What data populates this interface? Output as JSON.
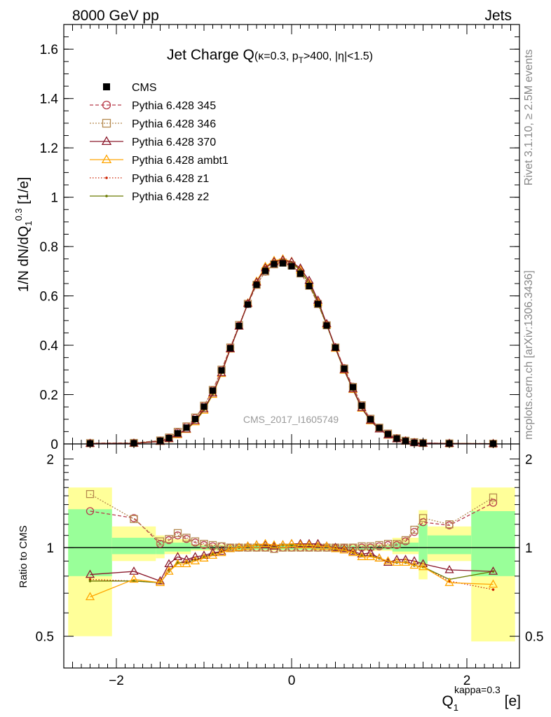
{
  "header": {
    "left": "8000 GeV pp",
    "right": "Jets"
  },
  "side_text": {
    "rivet": "Rivet 3.1.10, ≥ 2.5M events",
    "mcplots": "mcplots.cern.ch [arXiv:1306.3436]"
  },
  "chart_data": [
    {
      "type": "line",
      "title_main": "Jet Charge Q",
      "title_cond_a": "(κ=0.3, p",
      "title_cond_sub": "T",
      "title_cond_b": ">400, |η|<1.5)",
      "watermark": "CMS_2017_I1605749",
      "ylabel_main": "1/N dN/dQ",
      "ylabel_sub": "1",
      "ylabel_sup": "0.3",
      "ylabel_unit": " [1/e]",
      "xlim": [
        -2.6,
        2.6
      ],
      "ylim": [
        0,
        1.7
      ],
      "yticks": [
        "0",
        "0.2",
        "0.4",
        "0.6",
        "0.8",
        "1",
        "1.2",
        "1.4",
        "1.6"
      ],
      "legend_position": "top-left",
      "x": [
        -2.3,
        -1.8,
        -1.5,
        -1.4,
        -1.3,
        -1.2,
        -1.1,
        -1.0,
        -0.9,
        -0.8,
        -0.7,
        -0.6,
        -0.5,
        -0.4,
        -0.3,
        -0.2,
        -0.1,
        0.0,
        0.1,
        0.2,
        0.3,
        0.4,
        0.5,
        0.6,
        0.7,
        0.8,
        0.9,
        1.0,
        1.1,
        1.2,
        1.3,
        1.4,
        1.5,
        1.8,
        2.3
      ],
      "series": [
        {
          "name": "CMS",
          "color": "#000000",
          "marker": "square-filled",
          "dash": "none",
          "values": [
            0.002,
            0.003,
            0.013,
            0.024,
            0.043,
            0.066,
            0.101,
            0.151,
            0.216,
            0.298,
            0.388,
            0.478,
            0.565,
            0.645,
            0.701,
            0.729,
            0.732,
            0.72,
            0.69,
            0.64,
            0.567,
            0.48,
            0.39,
            0.305,
            0.23,
            0.155,
            0.1,
            0.065,
            0.04,
            0.022,
            0.012,
            0.005,
            0.003,
            0.002,
            0.001
          ]
        },
        {
          "name": "Pythia 6.428 345",
          "color": "#b83a4a",
          "marker": "circle-open",
          "dash": "5,3",
          "values": [
            0.003,
            0.004,
            0.013,
            0.025,
            0.047,
            0.07,
            0.105,
            0.154,
            0.218,
            0.3,
            0.39,
            0.48,
            0.567,
            0.645,
            0.698,
            0.728,
            0.735,
            0.723,
            0.692,
            0.642,
            0.568,
            0.482,
            0.392,
            0.308,
            0.232,
            0.157,
            0.1,
            0.066,
            0.041,
            0.023,
            0.013,
            0.006,
            0.004,
            0.002,
            0.001
          ]
        },
        {
          "name": "Pythia 6.428 346",
          "color": "#b5894f",
          "marker": "square-open",
          "dash": "2,2",
          "values": [
            0.003,
            0.004,
            0.014,
            0.026,
            0.049,
            0.071,
            0.107,
            0.155,
            0.219,
            0.301,
            0.391,
            0.482,
            0.568,
            0.645,
            0.699,
            0.728,
            0.735,
            0.723,
            0.691,
            0.641,
            0.567,
            0.481,
            0.391,
            0.306,
            0.231,
            0.157,
            0.102,
            0.066,
            0.042,
            0.023,
            0.013,
            0.007,
            0.004,
            0.002,
            0.001
          ]
        },
        {
          "name": "Pythia 6.428 370",
          "color": "#8b1a2c",
          "marker": "triangle-open",
          "dash": "none",
          "values": [
            0.0016,
            0.0024,
            0.01,
            0.021,
            0.04,
            0.06,
            0.094,
            0.142,
            0.206,
            0.288,
            0.385,
            0.477,
            0.569,
            0.655,
            0.713,
            0.738,
            0.745,
            0.738,
            0.712,
            0.662,
            0.582,
            0.487,
            0.39,
            0.301,
            0.223,
            0.147,
            0.096,
            0.06,
            0.036,
            0.02,
            0.011,
            0.0045,
            0.0027,
            0.0017,
            0.0008
          ]
        },
        {
          "name": "Pythia 6.428 ambt1",
          "color": "#ffa500",
          "marker": "triangle-open",
          "dash": "none",
          "values": [
            0.0014,
            0.0023,
            0.0098,
            0.02,
            0.037,
            0.058,
            0.089,
            0.136,
            0.2,
            0.285,
            0.384,
            0.477,
            0.571,
            0.659,
            0.719,
            0.743,
            0.749,
            0.739,
            0.705,
            0.652,
            0.574,
            0.484,
            0.387,
            0.298,
            0.22,
            0.144,
            0.093,
            0.06,
            0.035,
            0.02,
            0.011,
            0.0044,
            0.0026,
            0.0016,
            0.0008
          ]
        },
        {
          "name": "Pythia 6.428 z1",
          "color": "#cc2200",
          "marker": "dot",
          "dash": "1.5,2.5",
          "values": [
            0.0016,
            0.0023,
            0.0098,
            0.02,
            0.038,
            0.059,
            0.092,
            0.139,
            0.203,
            0.288,
            0.386,
            0.477,
            0.569,
            0.656,
            0.716,
            0.741,
            0.747,
            0.737,
            0.704,
            0.652,
            0.574,
            0.484,
            0.388,
            0.299,
            0.22,
            0.145,
            0.094,
            0.06,
            0.036,
            0.02,
            0.011,
            0.0044,
            0.0026,
            0.0016,
            0.0008
          ]
        },
        {
          "name": "Pythia 6.428 z2",
          "color": "#6b7a00",
          "marker": "dot",
          "dash": "none",
          "values": [
            0.0015,
            0.0023,
            0.0099,
            0.02,
            0.038,
            0.059,
            0.091,
            0.138,
            0.202,
            0.287,
            0.385,
            0.476,
            0.568,
            0.654,
            0.714,
            0.739,
            0.745,
            0.736,
            0.703,
            0.651,
            0.573,
            0.483,
            0.387,
            0.298,
            0.22,
            0.145,
            0.093,
            0.06,
            0.036,
            0.02,
            0.011,
            0.0044,
            0.0026,
            0.0016,
            0.0009
          ]
        }
      ]
    },
    {
      "type": "line",
      "ylabel": "Ratio to CMS",
      "xlabel_main": "Q",
      "xlabel_sub": "1",
      "xlabel_sup": "kappa=0.3",
      "xlabel_unit": " [e]",
      "xlim": [
        -2.6,
        2.6
      ],
      "ylim": [
        0.39,
        2.25
      ],
      "yticks": [
        "0.5",
        "1",
        "2"
      ],
      "xticks": [
        "−2",
        "0",
        "2"
      ],
      "reference_line": 1,
      "bands": [
        {
          "x0": -2.55,
          "x1": -2.05,
          "yellow": [
            0.5,
            1.6
          ],
          "green": [
            0.8,
            1.35
          ]
        },
        {
          "x0": -2.05,
          "x1": -1.55,
          "yellow": [
            0.9,
            1.18
          ],
          "green": [
            0.95,
            1.08
          ]
        },
        {
          "x0": -1.55,
          "x1": -1.45,
          "yellow": [
            0.92,
            1.1
          ],
          "green": [
            0.95,
            1.05
          ]
        },
        {
          "x0": -1.45,
          "x1": -1.15,
          "yellow": [
            0.95,
            1.07
          ],
          "green": [
            0.97,
            1.04
          ]
        },
        {
          "x0": -1.15,
          "x1": 1.15,
          "yellow": [
            0.975,
            1.025
          ],
          "green": [
            0.985,
            1.015
          ]
        },
        {
          "x0": 1.15,
          "x1": 1.45,
          "yellow": [
            0.95,
            1.08
          ],
          "green": [
            0.97,
            1.04
          ]
        },
        {
          "x0": 1.45,
          "x1": 1.55,
          "yellow": [
            0.78,
            1.34
          ],
          "green": [
            0.88,
            1.2
          ]
        },
        {
          "x0": 1.55,
          "x1": 2.05,
          "yellow": [
            0.9,
            1.18
          ],
          "green": [
            0.95,
            1.1
          ]
        },
        {
          "x0": 2.05,
          "x1": 2.55,
          "yellow": [
            0.48,
            1.6
          ],
          "green": [
            0.8,
            1.33
          ]
        }
      ],
      "x": [
        -2.3,
        -1.8,
        -1.5,
        -1.4,
        -1.3,
        -1.2,
        -1.1,
        -1.0,
        -0.9,
        -0.8,
        -0.7,
        -0.6,
        -0.5,
        -0.4,
        -0.3,
        -0.2,
        -0.1,
        0.0,
        0.1,
        0.2,
        0.3,
        0.4,
        0.5,
        0.6,
        0.7,
        0.8,
        0.9,
        1.0,
        1.1,
        1.2,
        1.3,
        1.4,
        1.5,
        1.8,
        2.3
      ],
      "series": [
        {
          "name": "Pythia 6.428 345",
          "color": "#b83a4a",
          "marker": "circle-open",
          "dash": "5,3",
          "values": [
            1.33,
            1.26,
            1.03,
            1.06,
            1.1,
            1.07,
            1.04,
            1.02,
            1.01,
            1.01,
            1.0,
            1.0,
            1.0,
            1.0,
            1.0,
            0.99,
            1.0,
            1.0,
            1.0,
            1.0,
            1.0,
            1.0,
            1.0,
            1.0,
            1.0,
            1.0,
            1.0,
            1.01,
            1.02,
            1.02,
            1.05,
            1.13,
            1.22,
            1.19,
            1.42
          ]
        },
        {
          "name": "Pythia 6.428 346",
          "color": "#b5894f",
          "marker": "square-open",
          "dash": "2,2",
          "values": [
            1.52,
            1.25,
            1.05,
            1.07,
            1.12,
            1.08,
            1.05,
            1.03,
            1.02,
            1.01,
            1.0,
            1.0,
            1.0,
            1.0,
            1.0,
            0.99,
            1.0,
            1.0,
            1.0,
            1.0,
            1.0,
            1.0,
            1.0,
            1.0,
            1.0,
            1.01,
            1.01,
            1.02,
            1.03,
            1.03,
            1.06,
            1.15,
            1.26,
            1.2,
            1.48
          ]
        },
        {
          "name": "Pythia 6.428 370",
          "color": "#8b1a2c",
          "marker": "triangle-open",
          "dash": "none",
          "values": [
            0.81,
            0.83,
            0.77,
            0.88,
            0.93,
            0.91,
            0.93,
            0.94,
            0.96,
            0.97,
            0.99,
            1.0,
            1.01,
            1.02,
            1.02,
            1.01,
            1.02,
            1.03,
            1.03,
            1.03,
            1.03,
            1.01,
            1.0,
            0.99,
            0.97,
            0.95,
            0.96,
            0.92,
            0.89,
            0.91,
            0.91,
            0.9,
            0.88,
            0.84,
            0.83
          ]
        },
        {
          "name": "Pythia 6.428 ambt1",
          "color": "#ffa500",
          "marker": "triangle-open",
          "dash": "none",
          "values": [
            0.68,
            0.78,
            0.76,
            0.83,
            0.88,
            0.88,
            0.9,
            0.92,
            0.94,
            0.96,
            0.99,
            1.0,
            1.01,
            1.02,
            1.03,
            1.02,
            1.02,
            1.03,
            1.02,
            1.02,
            1.01,
            1.01,
            0.99,
            0.98,
            0.96,
            0.93,
            0.93,
            0.92,
            0.9,
            0.89,
            0.89,
            0.87,
            0.86,
            0.76,
            0.75
          ]
        },
        {
          "name": "Pythia 6.428 z1",
          "color": "#cc2200",
          "marker": "dot",
          "dash": "1.5,2.5",
          "values": [
            0.78,
            0.77,
            0.76,
            0.84,
            0.89,
            0.9,
            0.92,
            0.93,
            0.95,
            0.97,
            0.99,
            1.0,
            1.01,
            1.02,
            1.02,
            1.02,
            1.02,
            1.02,
            1.02,
            1.02,
            1.01,
            1.01,
            0.99,
            0.98,
            0.96,
            0.94,
            0.94,
            0.92,
            0.9,
            0.89,
            0.89,
            0.87,
            0.86,
            0.77,
            0.72
          ]
        },
        {
          "name": "Pythia 6.428 z2",
          "color": "#6b7a00",
          "marker": "dot",
          "dash": "none",
          "values": [
            0.77,
            0.77,
            0.76,
            0.83,
            0.89,
            0.89,
            0.91,
            0.93,
            0.95,
            0.97,
            0.99,
            1.0,
            1.01,
            1.02,
            1.02,
            1.01,
            1.02,
            1.02,
            1.02,
            1.02,
            1.01,
            1.01,
            0.99,
            0.98,
            0.96,
            0.94,
            0.94,
            0.92,
            0.9,
            0.89,
            0.89,
            0.87,
            0.86,
            0.78,
            0.83
          ]
        }
      ]
    }
  ]
}
